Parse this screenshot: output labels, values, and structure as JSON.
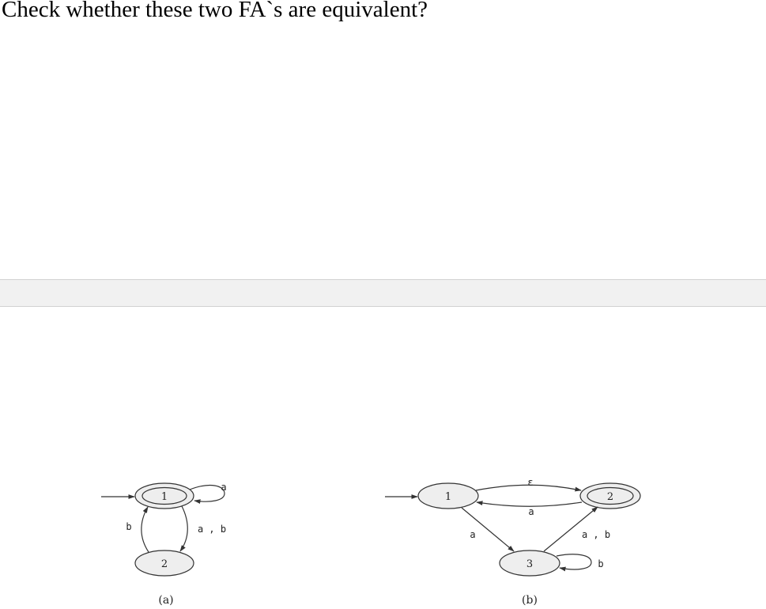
{
  "question": {
    "text": "Check whether these two FA`s are equivalent?"
  },
  "figure": {
    "fa_a": {
      "caption": "(a)",
      "states": [
        {
          "label": "1",
          "initial": true,
          "accepting": true
        },
        {
          "label": "2",
          "initial": false,
          "accepting": false
        }
      ],
      "transitions": [
        {
          "from": "1",
          "to": "1",
          "label": "a"
        },
        {
          "from": "1",
          "to": "2",
          "label": "a , b"
        },
        {
          "from": "2",
          "to": "1",
          "label": "b"
        }
      ]
    },
    "fa_b": {
      "caption": "(b)",
      "states": [
        {
          "label": "1",
          "initial": true,
          "accepting": false
        },
        {
          "label": "2",
          "initial": false,
          "accepting": true
        },
        {
          "label": "3",
          "initial": false,
          "accepting": false
        }
      ],
      "transitions": [
        {
          "from": "1",
          "to": "2",
          "label": "ε"
        },
        {
          "from": "2",
          "to": "1",
          "label": "a"
        },
        {
          "from": "1",
          "to": "3",
          "label": "a"
        },
        {
          "from": "3",
          "to": "2",
          "label": "a , b"
        },
        {
          "from": "3",
          "to": "3",
          "label": "b"
        }
      ]
    }
  }
}
